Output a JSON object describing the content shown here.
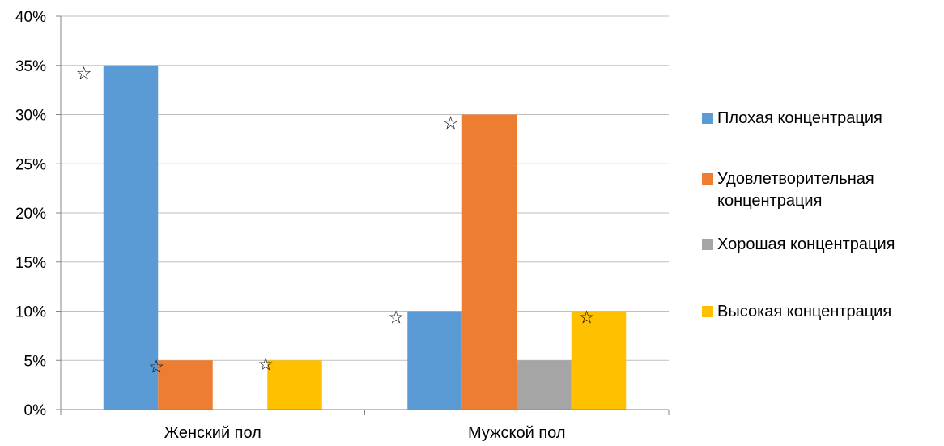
{
  "chart_data": {
    "type": "bar",
    "categories": [
      "Женский пол",
      "Мужской пол"
    ],
    "series": [
      {
        "name": "Плохая концентрация",
        "values": [
          35,
          10
        ],
        "color": "#5B9BD5"
      },
      {
        "name": "Удовлетворительная концентрация",
        "values": [
          5,
          30
        ],
        "color": "#ED7D31"
      },
      {
        "name": "Хорошая концентрация",
        "values": [
          0,
          5
        ],
        "color": "#A5A5A5"
      },
      {
        "name": "Высокая концентрация",
        "values": [
          5,
          10
        ],
        "color": "#FFC000"
      }
    ],
    "ylim": [
      0,
      40
    ],
    "yticks": [
      "0%",
      "5%",
      "10%",
      "15%",
      "20%",
      "25%",
      "30%",
      "35%",
      "40%"
    ],
    "grid": true,
    "legend_position": "right",
    "annotations": [
      {
        "symbol": "☆",
        "category": "Женский пол",
        "series": "Плохая концентрация"
      },
      {
        "symbol": "☆",
        "category": "Женский пол",
        "series": "Удовлетворительная концентрация"
      },
      {
        "symbol": "☆",
        "category": "Женский пол",
        "series": "Высокая концентрация"
      },
      {
        "symbol": "☆",
        "category": "Мужской пол",
        "series": "Плохая концентрация"
      },
      {
        "symbol": "☆",
        "category": "Мужской пол",
        "series": "Удовлетворительная концентрация"
      },
      {
        "symbol": "☆",
        "category": "Мужской пол",
        "series": "Высокая концентрация"
      }
    ]
  },
  "legend": {
    "items": [
      "Плохая концентрация",
      "Удовлетворительная концентрация",
      "Хорошая концентрация",
      "Высокая концентрация"
    ]
  }
}
